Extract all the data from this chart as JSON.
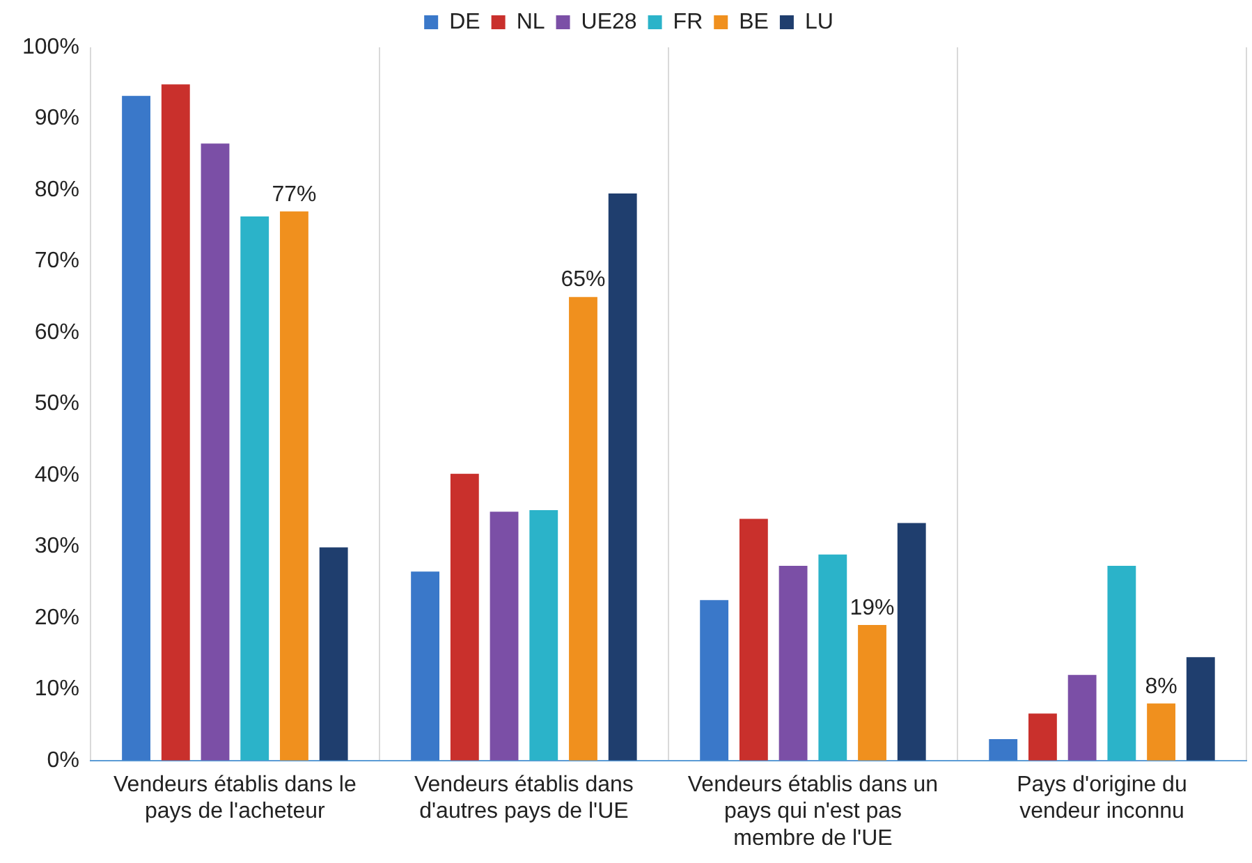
{
  "chart_data": {
    "type": "bar",
    "categories": [
      "Vendeurs établis dans le pays de l'acheteur",
      "Vendeurs établis dans d'autres pays de l'UE",
      "Vendeurs établis dans un pays qui n'est pas membre de l'UE",
      "Pays d'origine du vendeur inconnu"
    ],
    "series": [
      {
        "name": "DE",
        "color": "#3a78c9",
        "values": [
          93.2,
          26.5,
          22.5,
          3.0
        ]
      },
      {
        "name": "NL",
        "color": "#c9302c",
        "values": [
          94.8,
          40.2,
          33.9,
          6.6
        ]
      },
      {
        "name": "UE28",
        "color": "#7b4fa6",
        "values": [
          86.5,
          34.9,
          27.3,
          12.0
        ]
      },
      {
        "name": "FR",
        "color": "#2bb3c9",
        "values": [
          76.3,
          35.1,
          28.9,
          27.3
        ]
      },
      {
        "name": "BE",
        "color": "#f0901e",
        "values": [
          77,
          65,
          19,
          8
        ],
        "value_labels": [
          "77%",
          "65%",
          "19%",
          "8%"
        ]
      },
      {
        "name": "LU",
        "color": "#1f3e6e",
        "values": [
          29.9,
          79.5,
          33.3,
          14.5
        ]
      }
    ],
    "ylim": [
      0,
      100
    ],
    "yticks": [
      {
        "value": 0,
        "label": "0%"
      },
      {
        "value": 10,
        "label": "10%"
      },
      {
        "value": 20,
        "label": "20%"
      },
      {
        "value": 30,
        "label": "30%"
      },
      {
        "value": 40,
        "label": "40%"
      },
      {
        "value": 50,
        "label": "50%"
      },
      {
        "value": 60,
        "label": "60%"
      },
      {
        "value": 70,
        "label": "70%"
      },
      {
        "value": 80,
        "label": "80%"
      },
      {
        "value": 90,
        "label": "90%"
      },
      {
        "value": 100,
        "label": "100%"
      }
    ],
    "grid": "x",
    "legend": "top"
  }
}
